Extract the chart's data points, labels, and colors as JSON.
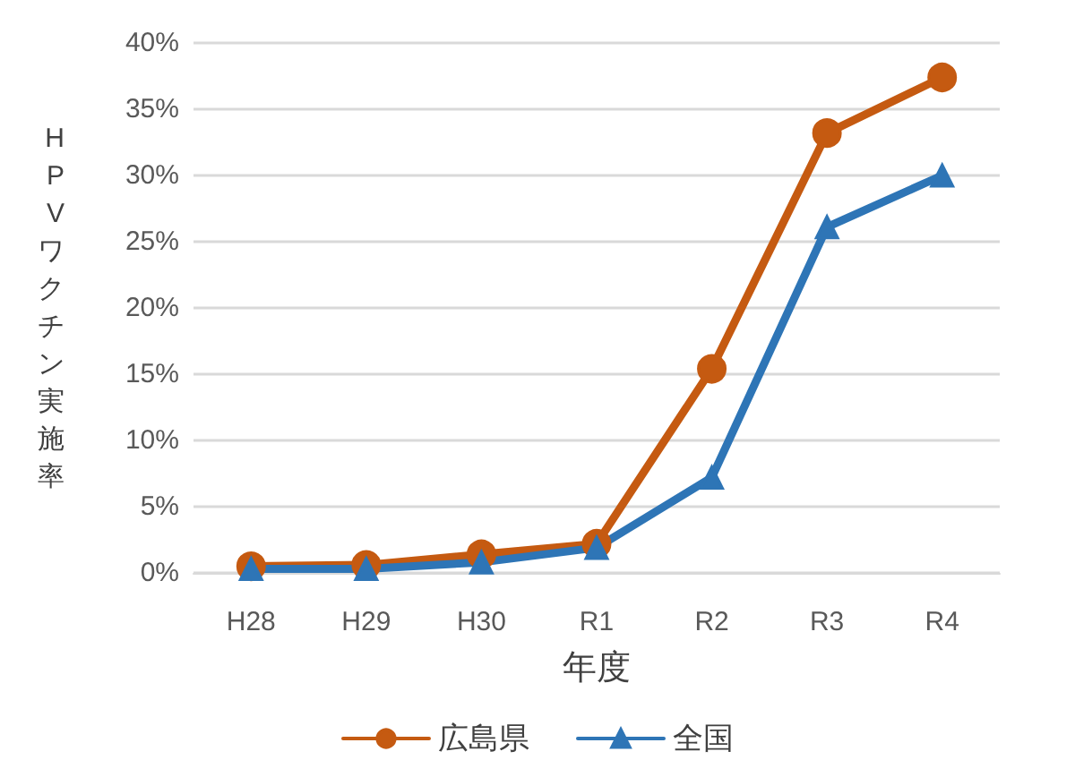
{
  "chart_data": {
    "type": "line",
    "xlabel": "年度",
    "ylabel": "HPVワクチン実施率",
    "categories": [
      "H28",
      "H29",
      "H30",
      "R1",
      "R2",
      "R3",
      "R4"
    ],
    "series": [
      {
        "name": "広島県",
        "color": "#c55a11",
        "marker": "circle",
        "values": [
          0.5,
          0.6,
          1.4,
          2.2,
          15.4,
          33.2,
          37.4
        ]
      },
      {
        "name": "全国",
        "color": "#2e75b6",
        "marker": "triangle",
        "values": [
          0.3,
          0.3,
          0.8,
          1.9,
          7.2,
          26.1,
          30.0
        ]
      }
    ],
    "ylim": [
      0,
      40
    ],
    "yticks": [
      {
        "value": 0,
        "label": "0%"
      },
      {
        "value": 5,
        "label": "5%"
      },
      {
        "value": 10,
        "label": "10%"
      },
      {
        "value": 15,
        "label": "15%"
      },
      {
        "value": 20,
        "label": "20%"
      },
      {
        "value": 25,
        "label": "25%"
      },
      {
        "value": 30,
        "label": "30%"
      },
      {
        "value": 35,
        "label": "35%"
      },
      {
        "value": 40,
        "label": "40%"
      }
    ],
    "grid": "y",
    "legend": "bottom",
    "line_style": "solid"
  }
}
